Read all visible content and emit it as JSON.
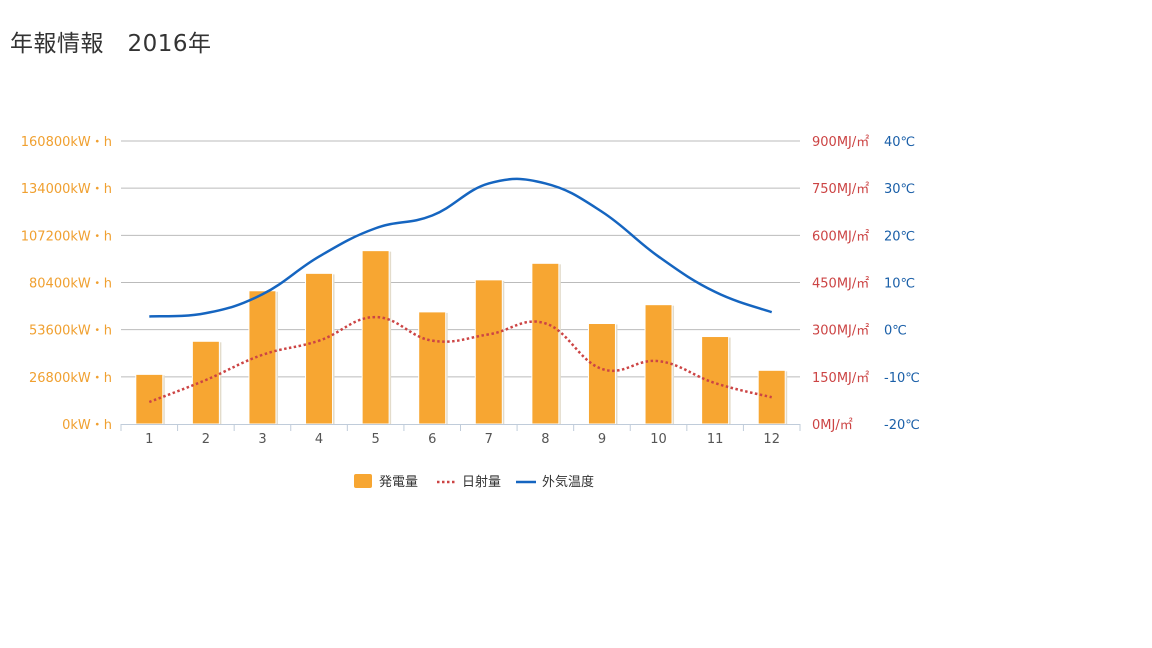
{
  "page": {
    "title": "年報情報",
    "year": "2016年"
  },
  "colors": {
    "bar": "#F7A632",
    "bar_edge": "#E3DCCB",
    "radiation": "#CC4444",
    "temperature": "#1565C0",
    "left_axis_text": "#F0A030",
    "right_axis_text": "#CC4444",
    "temp_axis_text": "#1A5FA8",
    "grid": "#BBBBBB"
  },
  "chart_data": {
    "type": "bar",
    "categories": [
      "1",
      "2",
      "3",
      "4",
      "5",
      "6",
      "7",
      "8",
      "9",
      "10",
      "11",
      "12"
    ],
    "series": [
      {
        "name": "発電量",
        "type": "bar",
        "axis": "left",
        "values": [
          28200,
          47000,
          75700,
          85600,
          98500,
          63700,
          81900,
          91300,
          57100,
          67800,
          49700,
          30500
        ]
      },
      {
        "name": "日射量",
        "type": "line",
        "style": "dotted",
        "axis": "right1",
        "values": [
          70,
          140,
          220,
          265,
          340,
          265,
          285,
          320,
          175,
          200,
          130,
          85
        ]
      },
      {
        "name": "外気温度",
        "type": "line",
        "style": "solid",
        "axis": "right2",
        "values": [
          2.8,
          3.5,
          7.5,
          15.5,
          21.5,
          24.2,
          31,
          31,
          25,
          15.5,
          8,
          3.7
        ]
      }
    ],
    "axes": {
      "left": {
        "ticks": [
          "0kW・h",
          "26800kW・h",
          "53600kW・h",
          "80400kW・h",
          "107200kW・h",
          "134000kW・h",
          "160800kW・h"
        ],
        "ylim": [
          0,
          160800
        ]
      },
      "right1": {
        "ticks": [
          "0MJ/㎡",
          "150MJ/㎡",
          "300MJ/㎡",
          "450MJ/㎡",
          "600MJ/㎡",
          "750MJ/㎡",
          "900MJ/㎡"
        ],
        "ylim": [
          0,
          900
        ]
      },
      "right2": {
        "ticks": [
          "-20℃",
          "-10℃",
          "0℃",
          "10℃",
          "20℃",
          "30℃",
          "40℃"
        ],
        "ylim": [
          -20,
          40
        ]
      }
    },
    "grid": true,
    "legend_position": "bottom-center"
  }
}
